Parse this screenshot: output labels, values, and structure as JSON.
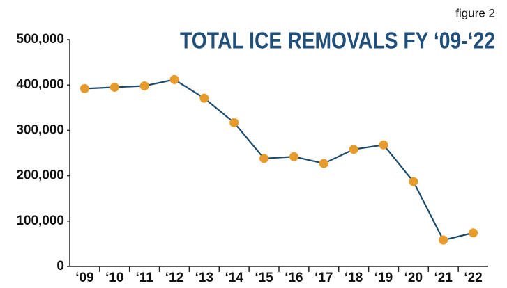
{
  "chart_data": {
    "type": "line",
    "title": "TOTAL ICE REMOVALS FY ‘09-‘22",
    "subtitle": "figure 2",
    "categories": [
      "‘09",
      "‘10",
      "‘11",
      "‘12",
      "‘13",
      "‘14",
      "‘15",
      "‘16",
      "‘17",
      "‘18",
      "‘19",
      "‘20",
      "‘21",
      "‘22"
    ],
    "series": [
      {
        "name": "Total ice removals",
        "line_color": "#1b4a6b",
        "color": "#e89b2a",
        "values": [
          392000,
          395000,
          398000,
          412000,
          371000,
          317000,
          238000,
          242000,
          227000,
          258000,
          268000,
          187000,
          58000,
          74000
        ]
      }
    ],
    "ylim": [
      0,
      500000
    ],
    "yticks": [
      0,
      {
        "value": 100000,
        "label": "100,000"
      },
      {
        "value": 200000,
        "label": "200,000"
      },
      {
        "value": 300000,
        "label": "300,000"
      },
      {
        "value": 400000,
        "label": "400,000"
      },
      {
        "value": 500000,
        "label": "500,000"
      }
    ],
    "grid": false
  }
}
